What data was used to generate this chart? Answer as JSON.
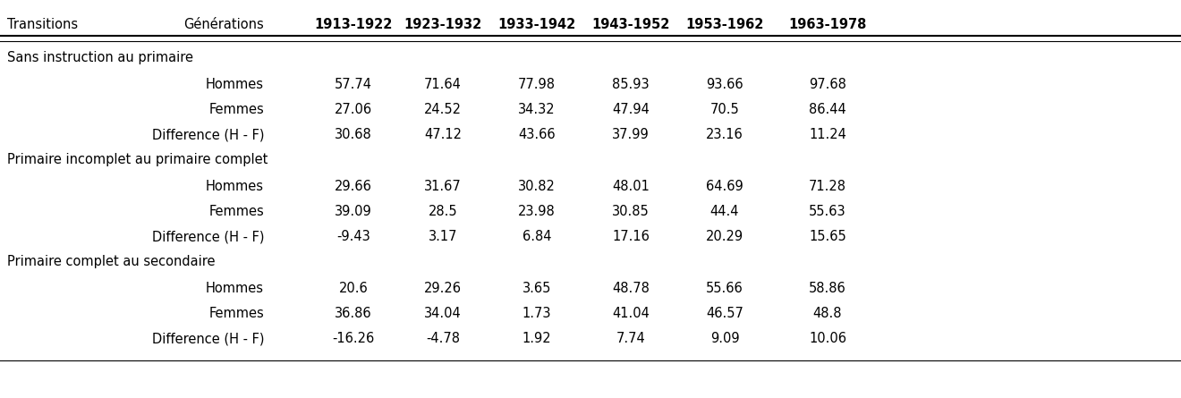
{
  "header_col1": "Transitions",
  "header_col2": "Générations",
  "columns": [
    "1913-1922",
    "1923-1932",
    "1933-1942",
    "1943-1952",
    "1953-1962",
    "1963-1978"
  ],
  "sections": [
    {
      "title": "Sans instruction au primaire",
      "rows": [
        {
          "label": "Hommes",
          "values": [
            "57.74",
            "71.64",
            "77.98",
            "85.93",
            "93.66",
            "97.68"
          ]
        },
        {
          "label": "Femmes",
          "values": [
            "27.06",
            "24.52",
            "34.32",
            "47.94",
            "70.5",
            "86.44"
          ]
        },
        {
          "label": "Difference (H - F)",
          "values": [
            "30.68",
            "47.12",
            "43.66",
            "37.99",
            "23.16",
            "11.24"
          ]
        }
      ]
    },
    {
      "title": "Primaire incomplet au primaire complet",
      "rows": [
        {
          "label": "Hommes",
          "values": [
            "29.66",
            "31.67",
            "30.82",
            "48.01",
            "64.69",
            "71.28"
          ]
        },
        {
          "label": "Femmes",
          "values": [
            "39.09",
            "28.5",
            "23.98",
            "30.85",
            "44.4",
            "55.63"
          ]
        },
        {
          "label": "Difference (H - F)",
          "values": [
            "-9.43",
            "3.17",
            "6.84",
            "17.16",
            "20.29",
            "15.65"
          ]
        }
      ]
    },
    {
      "title": "Primaire complet au secondaire",
      "rows": [
        {
          "label": "Hommes",
          "values": [
            "20.6",
            "29.26",
            "3.65",
            "48.78",
            "55.66",
            "58.86"
          ]
        },
        {
          "label": "Femmes",
          "values": [
            "36.86",
            "34.04",
            "1.73",
            "41.04",
            "46.57",
            "48.8"
          ]
        },
        {
          "label": "Difference (H - F)",
          "values": [
            "-16.26",
            "-4.78",
            "1.92",
            "7.74",
            "9.09",
            "10.06"
          ]
        }
      ]
    }
  ],
  "bg_color": "#ffffff",
  "text_color": "#000000",
  "fontsize": 10.5
}
